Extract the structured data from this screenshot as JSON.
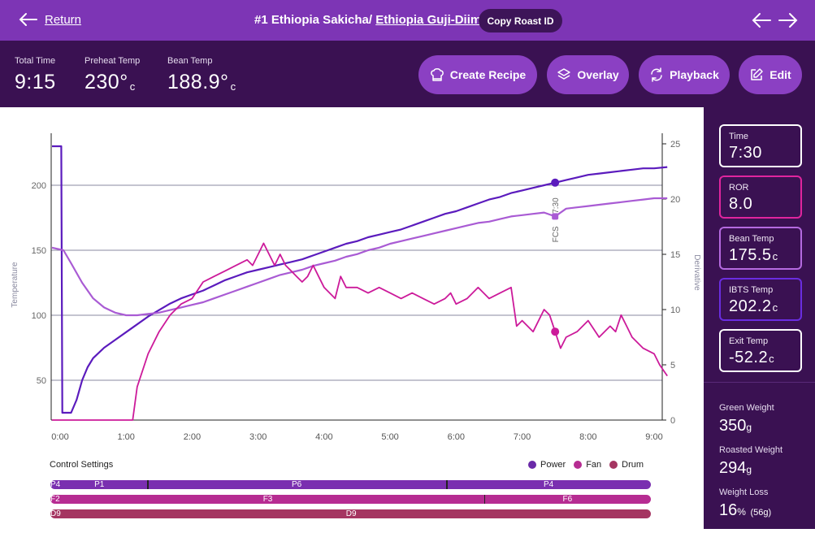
{
  "topbar": {
    "return_label": "Return",
    "title_main": "#1 Ethiopia Sakicha/ ",
    "title_sub": "Ethiopia Guji-Diima",
    "copy_label": "Copy Roast ID"
  },
  "stats": {
    "total_time": {
      "label": "Total Time",
      "value": "9:15",
      "unit": ""
    },
    "preheat_temp": {
      "label": "Preheat Temp",
      "value": "230°",
      "unit": "c"
    },
    "bean_temp": {
      "label": "Bean Temp",
      "value": "188.9°",
      "unit": "c"
    }
  },
  "actions": {
    "create_recipe": "Create Recipe",
    "overlay": "Overlay",
    "playback": "Playback",
    "edit": "Edit"
  },
  "readouts": {
    "time": {
      "label": "Time",
      "value": "7:30",
      "unit": ""
    },
    "ror": {
      "label": "ROR",
      "value": "8.0",
      "unit": ""
    },
    "bean_temp": {
      "label": "Bean Temp",
      "value": "175.5",
      "unit": "c"
    },
    "ibts_temp": {
      "label": "IBTS Temp",
      "value": "202.2",
      "unit": "c"
    },
    "exit_temp": {
      "label": "Exit Temp",
      "value": "-52.2",
      "unit": "c"
    }
  },
  "weights": {
    "green": {
      "label": "Green Weight",
      "value": "350",
      "unit": "g"
    },
    "roasted": {
      "label": "Roasted Weight",
      "value": "294",
      "unit": "g"
    },
    "loss": {
      "label": "Weight Loss",
      "value": "16",
      "unit": "%",
      "extra": "(56g)"
    }
  },
  "colors": {
    "ibts": "#5b1bbd",
    "bean": "#a95bd4",
    "ror": "#cc1a9a",
    "power": "#7a2fb0",
    "fan": "#b62c92",
    "drum": "#a53561",
    "card_ror_border": "#e0259e",
    "card_bean_border": "#b56ae0",
    "card_ibts_border": "#6a2de0"
  },
  "chart_data": {
    "type": "line",
    "xlabel": "",
    "ylabel": "Temperature",
    "y2label": "Derivative",
    "xlim": [
      0,
      555
    ],
    "ylim": [
      20,
      230
    ],
    "y2lim": [
      0,
      25
    ],
    "x_ticks": [
      0,
      60,
      120,
      180,
      240,
      300,
      360,
      420,
      480,
      540
    ],
    "x_tick_labels": [
      "0:00",
      "1:00",
      "2:00",
      "3:00",
      "4:00",
      "5:00",
      "6:00",
      "7:00",
      "8:00",
      "9:00"
    ],
    "y_ticks": [
      50,
      100,
      150,
      200
    ],
    "y2_ticks": [
      0,
      5,
      10,
      15,
      20,
      25
    ],
    "annotation": {
      "label": "7:30",
      "sublabel": "FCS",
      "x": 450
    },
    "series": [
      {
        "name": "IBTS Temp",
        "points": [
          [
            0,
            230
          ],
          [
            1,
            230
          ],
          [
            2,
            25
          ],
          [
            5,
            25
          ],
          [
            10,
            25
          ],
          [
            15,
            35
          ],
          [
            20,
            50
          ],
          [
            25,
            60
          ],
          [
            30,
            67
          ],
          [
            40,
            75
          ],
          [
            50,
            81
          ],
          [
            60,
            87
          ],
          [
            70,
            93
          ],
          [
            80,
            99
          ],
          [
            90,
            104
          ],
          [
            100,
            109
          ],
          [
            110,
            113
          ],
          [
            120,
            116
          ],
          [
            130,
            119
          ],
          [
            140,
            123
          ],
          [
            150,
            127
          ],
          [
            160,
            130
          ],
          [
            170,
            133
          ],
          [
            180,
            135
          ],
          [
            190,
            137
          ],
          [
            200,
            139
          ],
          [
            210,
            141
          ],
          [
            220,
            143
          ],
          [
            230,
            146
          ],
          [
            240,
            149
          ],
          [
            250,
            152
          ],
          [
            260,
            155
          ],
          [
            270,
            157
          ],
          [
            280,
            160
          ],
          [
            290,
            162
          ],
          [
            300,
            164
          ],
          [
            310,
            166
          ],
          [
            320,
            169
          ],
          [
            330,
            172
          ],
          [
            340,
            175
          ],
          [
            350,
            178
          ],
          [
            360,
            180
          ],
          [
            370,
            183
          ],
          [
            380,
            186
          ],
          [
            390,
            189
          ],
          [
            400,
            191
          ],
          [
            410,
            194
          ],
          [
            420,
            196
          ],
          [
            430,
            198
          ],
          [
            440,
            200
          ],
          [
            450,
            202
          ],
          [
            460,
            204
          ],
          [
            470,
            206
          ],
          [
            480,
            208
          ],
          [
            490,
            209
          ],
          [
            500,
            210
          ],
          [
            510,
            211
          ],
          [
            520,
            212
          ],
          [
            530,
            213
          ],
          [
            540,
            213
          ],
          [
            552,
            214
          ]
        ]
      },
      {
        "name": "Bean Temp",
        "points": [
          [
            0,
            152
          ],
          [
            3,
            150
          ],
          [
            10,
            140
          ],
          [
            20,
            125
          ],
          [
            30,
            113
          ],
          [
            40,
            106
          ],
          [
            50,
            102
          ],
          [
            60,
            100
          ],
          [
            70,
            100
          ],
          [
            80,
            101
          ],
          [
            90,
            102
          ],
          [
            100,
            104
          ],
          [
            110,
            106
          ],
          [
            120,
            108
          ],
          [
            130,
            110
          ],
          [
            140,
            113
          ],
          [
            150,
            116
          ],
          [
            160,
            119
          ],
          [
            170,
            122
          ],
          [
            180,
            125
          ],
          [
            190,
            128
          ],
          [
            200,
            131
          ],
          [
            210,
            133
          ],
          [
            220,
            135
          ],
          [
            230,
            138
          ],
          [
            240,
            140
          ],
          [
            250,
            142
          ],
          [
            260,
            145
          ],
          [
            270,
            147
          ],
          [
            280,
            150
          ],
          [
            290,
            152
          ],
          [
            300,
            155
          ],
          [
            310,
            157
          ],
          [
            320,
            159
          ],
          [
            330,
            161
          ],
          [
            340,
            163
          ],
          [
            350,
            165
          ],
          [
            360,
            167
          ],
          [
            370,
            169
          ],
          [
            380,
            171
          ],
          [
            390,
            172
          ],
          [
            400,
            174
          ],
          [
            410,
            176
          ],
          [
            420,
            177
          ],
          [
            430,
            178
          ],
          [
            440,
            179
          ],
          [
            450,
            176
          ],
          [
            460,
            182
          ],
          [
            470,
            183
          ],
          [
            480,
            184
          ],
          [
            490,
            185
          ],
          [
            500,
            186
          ],
          [
            510,
            187
          ],
          [
            520,
            188
          ],
          [
            530,
            189
          ],
          [
            540,
            190
          ],
          [
            552,
            190
          ]
        ]
      },
      {
        "name": "ROR",
        "axis": "y2",
        "points": [
          [
            0,
            0
          ],
          [
            50,
            0
          ],
          [
            66,
            0
          ],
          [
            70,
            3
          ],
          [
            80,
            6
          ],
          [
            90,
            8
          ],
          [
            100,
            9.5
          ],
          [
            110,
            10.5
          ],
          [
            120,
            11
          ],
          [
            130,
            12.5
          ],
          [
            140,
            13
          ],
          [
            150,
            13.5
          ],
          [
            160,
            14
          ],
          [
            170,
            14.5
          ],
          [
            175,
            14
          ],
          [
            180,
            15
          ],
          [
            185,
            16
          ],
          [
            190,
            15
          ],
          [
            195,
            14
          ],
          [
            200,
            15
          ],
          [
            205,
            14
          ],
          [
            210,
            13.5
          ],
          [
            215,
            13
          ],
          [
            220,
            12.5
          ],
          [
            225,
            13
          ],
          [
            230,
            14
          ],
          [
            235,
            13
          ],
          [
            240,
            12
          ],
          [
            250,
            11
          ],
          [
            255,
            13
          ],
          [
            260,
            12
          ],
          [
            270,
            12
          ],
          [
            280,
            11.5
          ],
          [
            290,
            12
          ],
          [
            300,
            11.5
          ],
          [
            310,
            11
          ],
          [
            320,
            11.5
          ],
          [
            330,
            11
          ],
          [
            340,
            10.5
          ],
          [
            350,
            11
          ],
          [
            355,
            11.5
          ],
          [
            360,
            10.5
          ],
          [
            370,
            11
          ],
          [
            380,
            12
          ],
          [
            390,
            11
          ],
          [
            400,
            11.5
          ],
          [
            410,
            12
          ],
          [
            415,
            8.5
          ],
          [
            420,
            9
          ],
          [
            430,
            8
          ],
          [
            440,
            10
          ],
          [
            445,
            9.5
          ],
          [
            450,
            8
          ],
          [
            455,
            6.5
          ],
          [
            460,
            7.5
          ],
          [
            470,
            8
          ],
          [
            480,
            9
          ],
          [
            490,
            7.5
          ],
          [
            500,
            8.5
          ],
          [
            505,
            8
          ],
          [
            510,
            9.5
          ],
          [
            515,
            8.5
          ],
          [
            520,
            7.5
          ],
          [
            530,
            6.5
          ],
          [
            540,
            6
          ],
          [
            545,
            5
          ],
          [
            552,
            4
          ]
        ]
      }
    ]
  },
  "control_settings": {
    "title": "Control Settings",
    "legend": [
      {
        "name": "Power",
        "color": "#6a2aa8"
      },
      {
        "name": "Fan",
        "color": "#b62c92"
      },
      {
        "name": "Drum",
        "color": "#a53561"
      }
    ],
    "power": [
      {
        "start": 0,
        "end": 1,
        "label": "P4"
      },
      {
        "start": 1,
        "end": 87,
        "label": "P1"
      },
      {
        "start": 87,
        "end": 356,
        "label": "P6"
      },
      {
        "start": 356,
        "end": 540,
        "label": "P4"
      }
    ],
    "fan": [
      {
        "start": 0,
        "end": 1,
        "label": "F2"
      },
      {
        "start": 1,
        "end": 390,
        "label": "F3"
      },
      {
        "start": 390,
        "end": 540,
        "label": "F6"
      }
    ],
    "drum": [
      {
        "start": 0,
        "end": 1,
        "label": "D9"
      },
      {
        "start": 1,
        "end": 540,
        "label": "D9"
      }
    ]
  }
}
